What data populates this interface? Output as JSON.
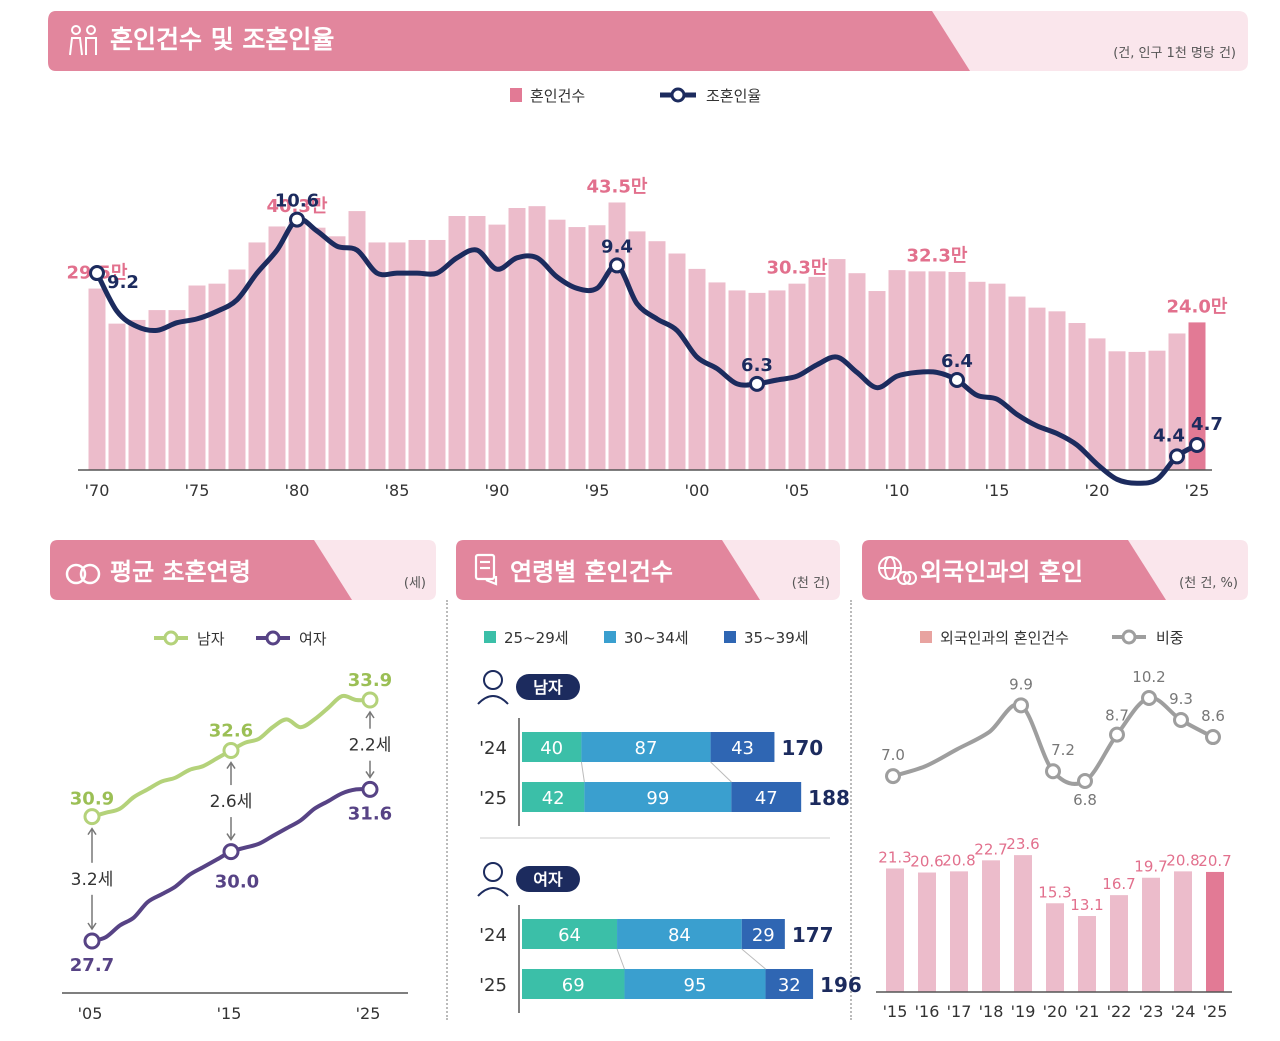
{
  "colors": {
    "header_pink": "#e2869d",
    "header_light": "#fae6ec",
    "bar_pink": "#ecbccb",
    "bar_highlight": "#e27a95",
    "label_pink": "#e2708d",
    "navy": "#1c2b5e",
    "green": "#b4d27a",
    "purple": "#574385",
    "seg1": "#3bbfa8",
    "seg2": "#3a9fcf",
    "seg3": "#2f66b3",
    "gray_line": "#9e9e9e",
    "foreign_bar": "#e8a3a0"
  },
  "main": {
    "title": "혼인건수 및 조혼인율",
    "unit": "(건, 인구 1천 명당 건)",
    "legend_bar": "혼인건수",
    "legend_line": "조혼인율",
    "icon": "couple-icon"
  },
  "age_panel": {
    "title": "평균 초혼연령",
    "unit": "(세)",
    "legend_male": "남자",
    "legend_female": "여자",
    "icon": "rings-icon"
  },
  "agegroup_panel": {
    "title": "연령별 혼인건수",
    "unit": "(천 건)",
    "legend": [
      "25~29세",
      "30~34세",
      "35~39세"
    ],
    "male_label": "남자",
    "female_label": "여자",
    "icon": "certificate-icon"
  },
  "foreign_panel": {
    "title": "외국인과의 혼인",
    "unit": "(천 건, %)",
    "legend_bar": "외국인과의 혼인건수",
    "legend_line": "비중",
    "icon": "globe-icon"
  },
  "chart_data": [
    {
      "id": "marriage",
      "type": "bar+line",
      "title": "혼인건수 및 조혼인율",
      "years": [
        1970,
        1971,
        1972,
        1973,
        1974,
        1975,
        1976,
        1977,
        1978,
        1979,
        1980,
        1981,
        1982,
        1983,
        1984,
        1985,
        1986,
        1987,
        1988,
        1989,
        1990,
        1991,
        1992,
        1993,
        1994,
        1995,
        1996,
        1997,
        1998,
        1999,
        2000,
        2001,
        2002,
        2003,
        2004,
        2005,
        2006,
        2007,
        2008,
        2009,
        2010,
        2011,
        2012,
        2013,
        2014,
        2015,
        2016,
        2017,
        2018,
        2019,
        2020,
        2021,
        2022,
        2023,
        2024,
        2025
      ],
      "x_ticks": [
        "'70",
        "'75",
        "'80",
        "'85",
        "'90",
        "'95",
        "'00",
        "'05",
        "'10",
        "'15",
        "'20",
        "'25"
      ],
      "series": [
        {
          "name": "혼인건수",
          "unit": "만 건",
          "values": [
            29.5,
            23.8,
            24.4,
            26.0,
            26.0,
            30.0,
            30.3,
            32.6,
            37.0,
            39.6,
            40.3,
            39.4,
            38.0,
            42.1,
            37.0,
            37.0,
            37.4,
            37.4,
            41.3,
            41.3,
            39.9,
            42.6,
            42.9,
            40.7,
            39.5,
            39.8,
            43.5,
            38.8,
            37.2,
            35.2,
            32.7,
            30.5,
            29.2,
            28.8,
            29.2,
            30.3,
            31.4,
            34.3,
            32.0,
            29.1,
            32.5,
            32.3,
            32.3,
            32.2,
            30.6,
            30.3,
            28.2,
            26.4,
            25.8,
            23.9,
            21.4,
            19.3,
            19.2,
            19.4,
            22.2,
            24.0
          ]
        },
        {
          "name": "조혼인율",
          "unit": "건/천명",
          "values": [
            9.2,
            8.2,
            7.8,
            7.7,
            7.9,
            8.0,
            8.2,
            8.5,
            9.2,
            9.8,
            10.6,
            10.3,
            9.9,
            9.8,
            9.2,
            9.2,
            9.2,
            9.2,
            9.6,
            9.8,
            9.3,
            9.6,
            9.6,
            9.1,
            8.8,
            8.8,
            9.4,
            8.4,
            8.0,
            7.7,
            7.0,
            6.7,
            6.3,
            6.3,
            6.4,
            6.5,
            6.8,
            7.0,
            6.6,
            6.2,
            6.5,
            6.6,
            6.6,
            6.4,
            6.0,
            5.9,
            5.5,
            5.2,
            5.0,
            4.7,
            4.2,
            3.8,
            3.7,
            3.8,
            4.4,
            4.7
          ]
        }
      ],
      "bar_labels": [
        {
          "year": 1970,
          "text": "29.5만"
        },
        {
          "year": 1980,
          "text": "40.3만"
        },
        {
          "year": 1996,
          "text": "43.5만"
        },
        {
          "year": 2005,
          "text": "30.3만"
        },
        {
          "year": 2012,
          "text": "32.3만"
        },
        {
          "year": 2025,
          "text": "24.0만"
        }
      ],
      "line_labels": [
        {
          "year": 1970,
          "text": "9.2"
        },
        {
          "year": 1980,
          "text": "10.6"
        },
        {
          "year": 1996,
          "text": "9.4"
        },
        {
          "year": 2003,
          "text": "6.3"
        },
        {
          "year": 2013,
          "text": "6.4"
        },
        {
          "year": 2024,
          "text": "4.4"
        },
        {
          "year": 2025,
          "text": "4.7"
        }
      ]
    },
    {
      "id": "first_marriage_age",
      "type": "line",
      "title": "평균 초혼연령",
      "years": [
        2005,
        2006,
        2007,
        2008,
        2009,
        2010,
        2011,
        2012,
        2013,
        2014,
        2015,
        2016,
        2017,
        2018,
        2019,
        2020,
        2021,
        2022,
        2023,
        2024,
        2025
      ],
      "x_ticks": [
        "'05",
        "'15",
        "'25"
      ],
      "series": [
        {
          "name": "남자",
          "values": [
            30.9,
            31.0,
            31.1,
            31.4,
            31.6,
            31.8,
            31.9,
            32.1,
            32.2,
            32.4,
            32.6,
            32.8,
            32.9,
            33.2,
            33.4,
            33.2,
            33.4,
            33.7,
            34.0,
            33.9,
            33.9
          ]
        },
        {
          "name": "여자",
          "values": [
            27.7,
            27.8,
            28.1,
            28.3,
            28.7,
            28.9,
            29.1,
            29.4,
            29.6,
            29.8,
            30.0,
            30.1,
            30.2,
            30.4,
            30.6,
            30.8,
            31.1,
            31.3,
            31.5,
            31.6,
            31.6
          ]
        }
      ],
      "male_labels": [
        {
          "year": 2005,
          "text": "30.9"
        },
        {
          "year": 2015,
          "text": "32.6"
        },
        {
          "year": 2025,
          "text": "33.9"
        }
      ],
      "female_labels": [
        {
          "year": 2005,
          "text": "27.7"
        },
        {
          "year": 2015,
          "text": "30.0"
        },
        {
          "year": 2025,
          "text": "31.6"
        }
      ],
      "gaps": [
        {
          "year": 2005,
          "text": "3.2세"
        },
        {
          "year": 2015,
          "text": "2.6세"
        },
        {
          "year": 2025,
          "text": "2.2세"
        }
      ]
    },
    {
      "id": "by_age_group",
      "type": "stacked-bar-horizontal",
      "title": "연령별 혼인건수",
      "groups": [
        {
          "name": "남자",
          "rows": [
            {
              "year": "'24",
              "values": [
                40,
                87,
                43
              ],
              "total": "170"
            },
            {
              "year": "'25",
              "values": [
                42,
                99,
                47
              ],
              "total": "188"
            }
          ]
        },
        {
          "name": "여자",
          "rows": [
            {
              "year": "'24",
              "values": [
                64,
                84,
                29
              ],
              "total": "177"
            },
            {
              "year": "'25",
              "values": [
                69,
                95,
                32
              ],
              "total": "196"
            }
          ]
        }
      ]
    },
    {
      "id": "foreign_marriage",
      "type": "bar+line",
      "title": "외국인과의 혼인",
      "categories": [
        "'15",
        "'16",
        "'17",
        "'18",
        "'19",
        "'20",
        "'21",
        "'22",
        "'23",
        "'24",
        "'25"
      ],
      "bars": {
        "name": "외국인과의 혼인건수",
        "values": [
          21.3,
          20.6,
          20.8,
          22.7,
          23.6,
          15.3,
          13.1,
          16.7,
          19.7,
          20.8,
          20.7
        ],
        "labels": [
          "21.3",
          "20.6",
          "20.8",
          "22.7",
          "23.6",
          "15.3",
          "13.1",
          "16.7",
          "19.7",
          "20.8",
          "20.7"
        ]
      },
      "line": {
        "name": "비중",
        "values": [
          7.0,
          7.4,
          8.1,
          8.8,
          9.9,
          7.2,
          6.8,
          8.7,
          10.2,
          9.3,
          8.6
        ],
        "labels": [
          "7.0",
          "",
          "",
          "",
          "9.9",
          "7.2",
          "6.8",
          "8.7",
          "10.2",
          "9.3",
          "8.6"
        ],
        "marker_indices": [
          0,
          4,
          5,
          6,
          7,
          8,
          9,
          10
        ]
      }
    }
  ]
}
